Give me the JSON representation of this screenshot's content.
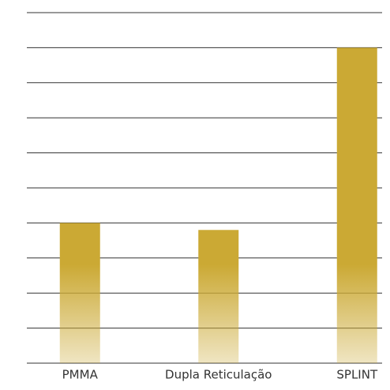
{
  "chart_data": {
    "type": "bar",
    "categories": [
      "PMMA",
      "Dupla Reticulação",
      "SPLINT"
    ],
    "values": [
      4,
      3.8,
      9
    ],
    "color": "#cba934",
    "ylim": [
      0,
      10
    ],
    "yticks": [
      0,
      1,
      2,
      3,
      4,
      5,
      6,
      7,
      8,
      9,
      10
    ],
    "grid": true
  }
}
